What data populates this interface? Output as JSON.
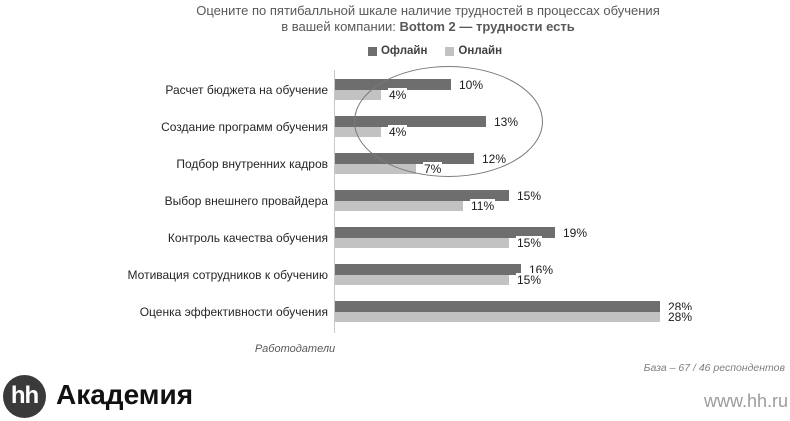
{
  "header": {
    "title_line1": "Оцените по пятибалльной шкале наличие трудностей в процессах обучения",
    "title_line2_regular": "в вашей компании: ",
    "title_line2_bold": "Bottom 2 — трудности есть"
  },
  "chart_data": {
    "type": "bar",
    "orientation": "horizontal",
    "title": "Оцените по пятибалльной шкале наличие трудностей в процессах обучения в вашей компании: Bottom 2 — трудности есть",
    "categories": [
      "Расчет бюджета на обучение",
      "Создание программ обучения",
      "Подбор внутренних кадров",
      "Выбор внешнего провайдера",
      "Контроль качества обучения",
      "Мотивация сотрудников к обучению",
      "Оценка эффективности обучения"
    ],
    "series": [
      {
        "name": "Офлайн",
        "color": "#6e6e6e",
        "values": [
          10,
          13,
          12,
          15,
          19,
          16,
          28
        ]
      },
      {
        "name": "Онлайн",
        "color": "#c2c2c2",
        "values": [
          4,
          4,
          7,
          11,
          15,
          15,
          28
        ]
      }
    ],
    "value_suffix": "%",
    "xlim": [
      0,
      30
    ],
    "grid": false,
    "legend_position": "top",
    "axis_label": "Работодатели",
    "annotation": {
      "shape": "ellipse",
      "note": "ellipse circles the top three categories"
    }
  },
  "footer": {
    "base_note": "База – 67 / 46 респондентов",
    "logo_circle_text": "hh",
    "logo_text": "Академия",
    "website": "www.hh.ru"
  }
}
